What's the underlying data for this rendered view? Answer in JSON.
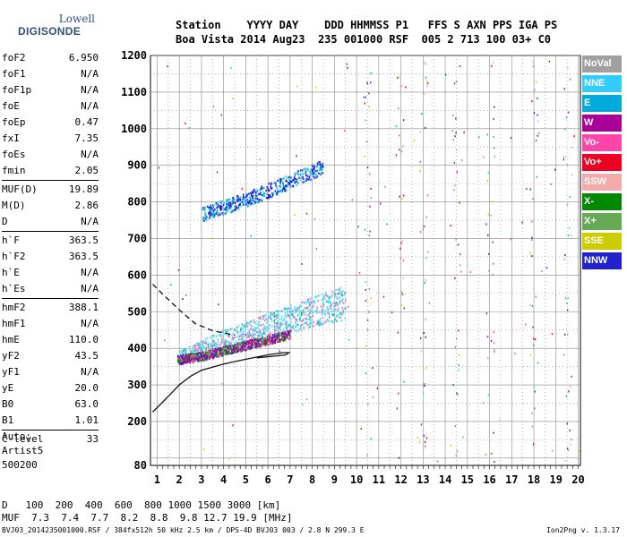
{
  "logo": {
    "line1": "Lowell",
    "line2": "DIGISONDE"
  },
  "header": {
    "line1": "Station    YYYY DAY    DDD HHMMSS P1   FFS S AXN PPS IGA PS",
    "line2": "Boa Vista 2014 Aug23  235 001000 RSF  005 2 713 100 03+ C0"
  },
  "params": {
    "group1": [
      {
        "name": "foF2",
        "value": "6.950"
      },
      {
        "name": "foF1",
        "value": "N/A"
      },
      {
        "name": "foF1p",
        "value": "N/A"
      },
      {
        "name": "foE",
        "value": "N/A"
      },
      {
        "name": "foEp",
        "value": "0.47"
      },
      {
        "name": "fxI",
        "value": "7.35"
      },
      {
        "name": "foEs",
        "value": "N/A"
      },
      {
        "name": "fmin",
        "value": "2.05"
      }
    ],
    "group2": [
      {
        "name": "MUF(D)",
        "value": "19.89"
      },
      {
        "name": "M(D)",
        "value": "2.86"
      },
      {
        "name": "D",
        "value": "N/A"
      }
    ],
    "group3": [
      {
        "name": "h`F",
        "value": "363.5"
      },
      {
        "name": "h`F2",
        "value": "363.5"
      },
      {
        "name": "h`E",
        "value": "N/A"
      },
      {
        "name": "h`Es",
        "value": "N/A"
      }
    ],
    "group4": [
      {
        "name": "hmF2",
        "value": "388.1"
      },
      {
        "name": "hmF1",
        "value": "N/A"
      },
      {
        "name": "hmE",
        "value": "110.0"
      },
      {
        "name": "yF2",
        "value": "43.5"
      },
      {
        "name": "yF1",
        "value": "N/A"
      },
      {
        "name": "yE",
        "value": "20.0"
      },
      {
        "name": "B0",
        "value": "63.0"
      },
      {
        "name": "B1",
        "value": "1.01"
      }
    ],
    "group5": [
      {
        "name": "C-level",
        "value": "33"
      }
    ]
  },
  "auto": {
    "line1": "Auto:",
    "line2": "Artist5",
    "line3": "500200"
  },
  "dmuf": {
    "d_label": "D",
    "d_values": "100  200  400  600  800 1000 1500 3000 [km]",
    "muf_label": "MUF",
    "muf_values": "7.3  7.4  7.7  8.2  8.8  9.8 12.7 19.9 [MHz]"
  },
  "footer": {
    "left": "BVJ03_2014235001000.RSF / 384fx512h 50 kHz 2.5 km / DPS-4D BVJ03 003 / 2.8 N 299.3 E",
    "right": "Ion2Png v. 1.3.17"
  },
  "legend": [
    {
      "label": "NoVal",
      "color": "#a0a0a0"
    },
    {
      "label": "NNE",
      "color": "#33ccff"
    },
    {
      "label": "E",
      "color": "#00aadd"
    },
    {
      "label": "W",
      "color": "#aa0099"
    },
    {
      "label": "Vo-",
      "color": "#ff44aa"
    },
    {
      "label": "Vo+",
      "color": "#ee0022"
    },
    {
      "label": "SSW",
      "color": "#f4aaaa"
    },
    {
      "label": "X-",
      "color": "#008800"
    },
    {
      "label": "X+",
      "color": "#66aa55"
    },
    {
      "label": "SSE",
      "color": "#cccc00"
    },
    {
      "label": "NNW",
      "color": "#2222cc"
    }
  ],
  "chart_data": {
    "type": "scatter",
    "x_range": [
      0.7,
      20.1
    ],
    "y_range": [
      80,
      1200
    ],
    "x_ticks": [
      1,
      2,
      3,
      4,
      5,
      6,
      7,
      8,
      9,
      10,
      11,
      12,
      13,
      14,
      15,
      16,
      17,
      18,
      19,
      20
    ],
    "y_ticks": [
      80,
      200,
      300,
      400,
      500,
      600,
      700,
      800,
      900,
      1000,
      1100,
      1200
    ],
    "grid": true,
    "clusters": [
      {
        "trace": "F2 O-trace",
        "x_range": [
          1.9,
          7.0
        ],
        "heights": [
          [
            1.9,
            370
          ],
          [
            3.0,
            380
          ],
          [
            4.0,
            395
          ],
          [
            5.0,
            410
          ],
          [
            6.0,
            425
          ],
          [
            7.0,
            440
          ]
        ]
      },
      {
        "trace": "F2 diffuse",
        "x_range": [
          2.0,
          9.5
        ],
        "heights": [
          [
            2.0,
            390
          ],
          [
            4.0,
            430
          ],
          [
            6.0,
            460
          ],
          [
            8.0,
            490
          ],
          [
            9.5,
            510
          ]
        ]
      },
      {
        "trace": "second hop",
        "x_range": [
          3.0,
          8.5
        ],
        "heights": [
          [
            3.0,
            760
          ],
          [
            5.0,
            800
          ],
          [
            7.0,
            850
          ],
          [
            8.5,
            890
          ]
        ]
      }
    ],
    "profile_solid": [
      [
        0.8,
        226
      ],
      [
        1.2,
        250
      ],
      [
        1.6,
        275
      ],
      [
        2.0,
        300
      ],
      [
        2.5,
        323
      ],
      [
        3.0,
        340
      ],
      [
        4.0,
        357
      ],
      [
        5.0,
        370
      ],
      [
        6.0,
        382
      ],
      [
        6.7,
        388
      ],
      [
        6.95,
        388
      ],
      [
        6.8,
        382
      ],
      [
        6.2,
        378
      ],
      [
        5.5,
        374
      ]
    ],
    "profile_dashed": [
      [
        0.8,
        575
      ],
      [
        1.3,
        545
      ],
      [
        2.0,
        505
      ],
      [
        2.7,
        468
      ],
      [
        3.5,
        448
      ],
      [
        4.5,
        436
      ]
    ],
    "sparse_column_x": [
      10.5,
      12.0,
      13.0,
      14.5,
      16.0,
      18.0,
      19.5
    ]
  }
}
